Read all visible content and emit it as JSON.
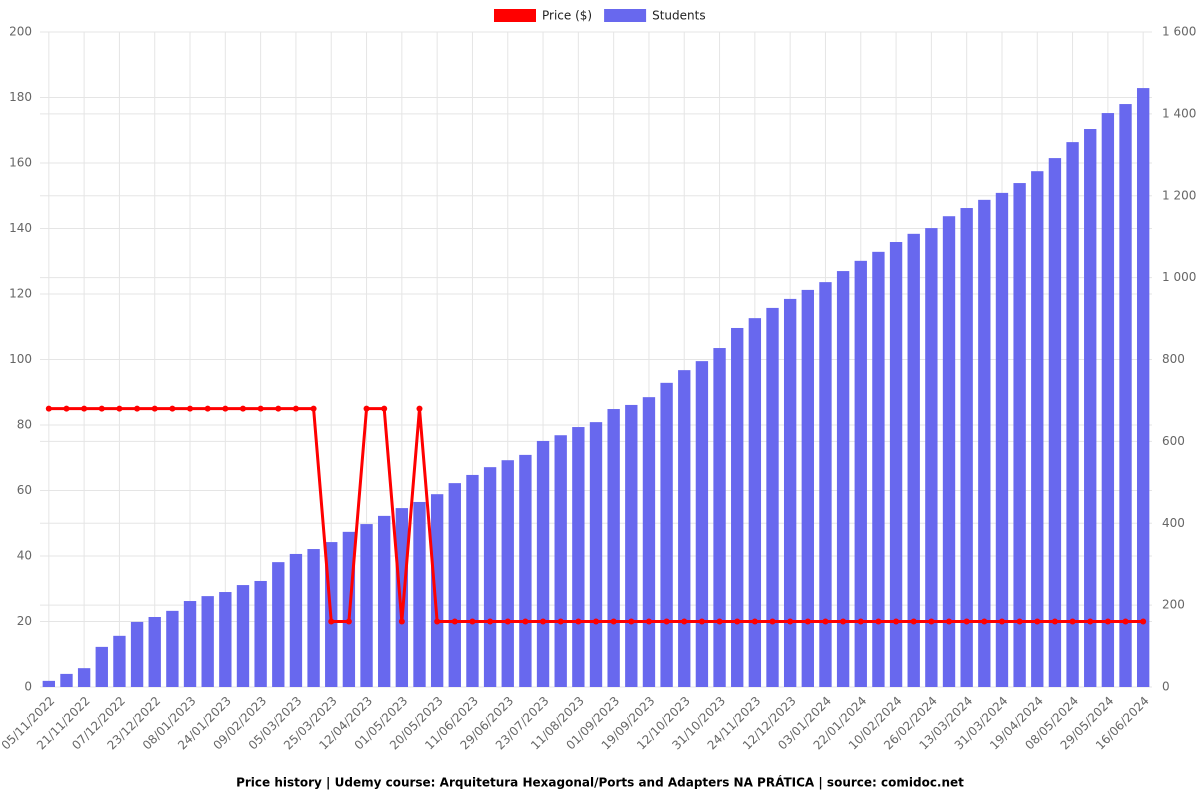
{
  "chart_data": {
    "type": "combo",
    "xlabel": "Price history | Udemy course: Arquitetura Hexagonal/Ports and Adapters NA PRÁTICA | source: comidoc.net",
    "categories": [
      "05/11/2022",
      null,
      "21/11/2022",
      null,
      "07/12/2022",
      null,
      "23/12/2022",
      null,
      "08/01/2023",
      null,
      "24/01/2023",
      null,
      "09/02/2023",
      null,
      "05/03/2023",
      null,
      "25/03/2023",
      null,
      "12/04/2023",
      null,
      "01/05/2023",
      null,
      "20/05/2023",
      null,
      "11/06/2023",
      null,
      "29/06/2023",
      null,
      "23/07/2023",
      null,
      "11/08/2023",
      null,
      "01/09/2023",
      null,
      "19/09/2023",
      null,
      "12/10/2023",
      null,
      "31/10/2023",
      null,
      "24/11/2023",
      null,
      "12/12/2023",
      null,
      "03/01/2024",
      null,
      "22/01/2024",
      null,
      "10/02/2024",
      null,
      "26/02/2024",
      null,
      "13/03/2024",
      null,
      "31/03/2024",
      null,
      "19/04/2024",
      null,
      "08/05/2024",
      null,
      "29/05/2024",
      null,
      "16/06/2024"
    ],
    "series": [
      {
        "name": "Price ($)",
        "type": "line",
        "axis": "y",
        "color": "#ff0000",
        "values": [
          84.99,
          84.99,
          84.99,
          84.99,
          84.99,
          84.99,
          84.99,
          84.99,
          84.99,
          84.99,
          84.99,
          84.99,
          84.99,
          84.99,
          84.99,
          84.99,
          19.99,
          19.99,
          84.99,
          84.99,
          19.99,
          84.99,
          19.99,
          19.99,
          19.99,
          19.99,
          19.99,
          19.99,
          19.99,
          19.99,
          19.99,
          19.99,
          19.99,
          19.99,
          19.99,
          19.99,
          19.99,
          19.99,
          19.99,
          19.99,
          19.99,
          19.99,
          19.99,
          19.99,
          19.99,
          19.99,
          19.99,
          19.99,
          19.99,
          19.99,
          19.99,
          19.99,
          19.99,
          19.99,
          19.99,
          19.99,
          19.99,
          19.99,
          19.99,
          19.99,
          19.99,
          19.99,
          19.99
        ]
      },
      {
        "name": "Students",
        "type": "bar",
        "axis": "y2",
        "color": "#6868ee",
        "values": [
          15,
          32,
          46,
          98,
          125,
          159,
          171,
          186,
          210,
          222,
          232,
          249,
          259,
          305,
          325,
          337,
          354,
          379,
          398,
          418,
          437,
          452,
          471,
          498,
          518,
          537,
          554,
          567,
          601,
          615,
          635,
          647,
          679,
          689,
          708,
          743,
          774,
          796,
          828,
          877,
          901,
          926,
          948,
          970,
          989,
          1016,
          1041,
          1063,
          1087,
          1107,
          1121,
          1150,
          1170,
          1190,
          1207,
          1231,
          1260,
          1292,
          1331,
          1363,
          1402,
          1424,
          1463
        ]
      }
    ],
    "ylim": [
      0,
      200
    ],
    "yticks": [
      0,
      20,
      40,
      60,
      80,
      100,
      120,
      140,
      160,
      180,
      200
    ],
    "y2lim": [
      0,
      1600
    ],
    "y2ticks": [
      0,
      200,
      400,
      600,
      800,
      {
        "value": 1000,
        "label": "1 000"
      },
      {
        "value": 1200,
        "label": "1 200"
      },
      {
        "value": 1400,
        "label": "1 400"
      },
      {
        "value": 1600,
        "label": "1 600"
      }
    ],
    "grid": true,
    "legend": "top"
  }
}
